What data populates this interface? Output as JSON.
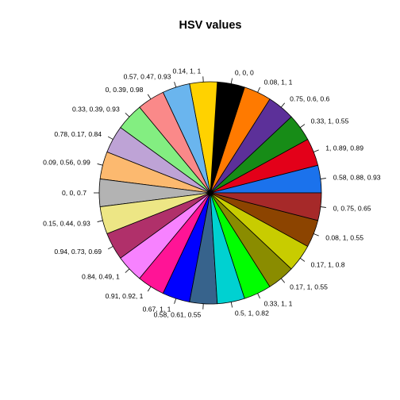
{
  "chart_data": {
    "type": "pie",
    "title": "HSV values",
    "direction": "counterclockwise",
    "start": "east",
    "slices": [
      {
        "label": "0.58, 0.88, 0.93",
        "value": 1,
        "color": "#1B72EC"
      },
      {
        "label": "1, 0.89, 0.89",
        "value": 1,
        "color": "#E30019"
      },
      {
        "label": "0.33, 1, 0.55",
        "value": 1,
        "color": "#178C17"
      },
      {
        "label": "0.75, 0.6, 0.6",
        "value": 1,
        "color": "#5C3099"
      },
      {
        "label": "0.08, 1, 1",
        "value": 1,
        "color": "#FF7A00"
      },
      {
        "label": "0, 0, 0",
        "value": 1,
        "color": "#000000"
      },
      {
        "label": "0.14, 1, 1",
        "value": 1,
        "color": "#FFD200"
      },
      {
        "label": "0.57, 0.47, 0.93",
        "value": 1,
        "color": "#6AB5EE"
      },
      {
        "label": "0, 0.39, 0.98",
        "value": 1,
        "color": "#FA8989"
      },
      {
        "label": "0.33, 0.39, 0.93",
        "value": 1,
        "color": "#83EE81"
      },
      {
        "label": "0.78, 0.17, 0.84",
        "value": 1,
        "color": "#BEA3D6"
      },
      {
        "label": "0.09, 0.56, 0.99",
        "value": 1,
        "color": "#FCB96F"
      },
      {
        "label": "0, 0, 0.7",
        "value": 1,
        "color": "#B3B3B3"
      },
      {
        "label": "0.15, 0.44, 0.93",
        "value": 1,
        "color": "#EDE685"
      },
      {
        "label": "0.94, 0.73, 0.69",
        "value": 1,
        "color": "#B0306A"
      },
      {
        "label": "0.84, 0.49, 1",
        "value": 1,
        "color": "#F782FF"
      },
      {
        "label": "0.91, 0.92, 1",
        "value": 1,
        "color": "#FF1496"
      },
      {
        "label": "0.67, 1, 1",
        "value": 1,
        "color": "#0000FF"
      },
      {
        "label": "0.58, 0.61, 0.55",
        "value": 1,
        "color": "#37638C"
      },
      {
        "label": "0.5, 1, 0.82",
        "value": 1,
        "color": "#00D1D1"
      },
      {
        "label": "0.33, 1, 1",
        "value": 1,
        "color": "#00FF00"
      },
      {
        "label": "0.17, 1, 0.55",
        "value": 1,
        "color": "#8A8C00"
      },
      {
        "label": "0.17, 1, 0.8",
        "value": 1,
        "color": "#C8CC00"
      },
      {
        "label": "0.08, 1, 0.55",
        "value": 1,
        "color": "#8C4400"
      },
      {
        "label": "0, 0.75, 0.65",
        "value": 1,
        "color": "#A62929"
      }
    ]
  }
}
